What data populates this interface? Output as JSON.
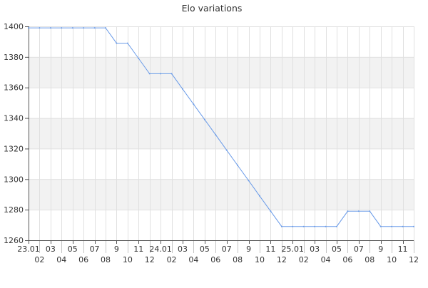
{
  "chart_data": {
    "type": "line",
    "title": "Elo variations",
    "xlabel": "",
    "ylabel": "",
    "ylim": [
      1260,
      1400
    ],
    "yticks": [
      1260,
      1280,
      1300,
      1320,
      1340,
      1360,
      1380,
      1400
    ],
    "grid": true,
    "categories": [
      "23.01",
      "02",
      "03",
      "04",
      "05",
      "06",
      "07",
      "08",
      "9",
      "10",
      "11",
      "12",
      "24.01",
      "02",
      "03",
      "04",
      "05",
      "06",
      "07",
      "08",
      "9",
      "10",
      "11",
      "12",
      "25.01",
      "02",
      "03",
      "04",
      "05",
      "06",
      "07",
      "08",
      "9",
      "10",
      "11",
      "12"
    ],
    "series": [
      {
        "values": [
          1399,
          1399,
          1399,
          1399,
          1399,
          1399,
          1399,
          1399,
          1389,
          1389,
          1379,
          1369,
          1369,
          1369,
          1359,
          1349,
          1339,
          1329,
          1319,
          1309,
          1299,
          1289,
          1279,
          1269,
          1269,
          1269,
          1269,
          1269,
          1269,
          1279,
          1279,
          1279,
          1269,
          1269,
          1269,
          1269
        ]
      }
    ],
    "colors": {
      "line": "#6a9be8",
      "band": "#f2f2f2",
      "grid": "#e0e0e0",
      "axis": "#555555"
    }
  }
}
